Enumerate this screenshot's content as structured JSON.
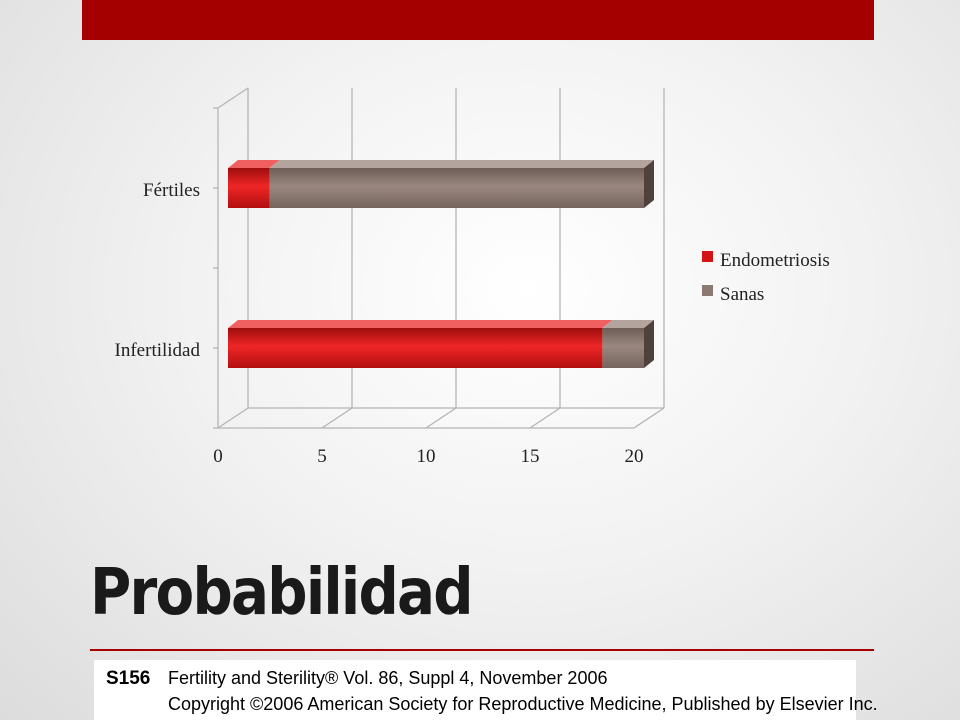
{
  "slide": {
    "title": "Probabilidad"
  },
  "citation": {
    "page": "S156",
    "journal": "Fertility and Sterility® Vol. 86, Suppl 4, November 2006",
    "copyright": "Copyright ©2006 American Society for Reproductive Medicine, Published by Elsevier Inc."
  },
  "colors": {
    "accent": "#a50000",
    "endometriosis": "#d41414",
    "sanas": "#8c7a72"
  },
  "chart_data": {
    "type": "bar",
    "orientation": "horizontal",
    "stacked": true,
    "style": "3d",
    "title": "",
    "xlabel": "",
    "ylabel": "",
    "categories": [
      "Infertilidad",
      "Fértiles"
    ],
    "series": [
      {
        "name": "Endometriosis",
        "values": [
          18,
          2
        ],
        "color": "#d41414"
      },
      {
        "name": "Sanas",
        "values": [
          2,
          18
        ],
        "color": "#8c7a72"
      }
    ],
    "xlim": [
      0,
      20
    ],
    "x_ticks": [
      "0",
      "5",
      "10",
      "15",
      "20"
    ],
    "grid": true,
    "legend": "right"
  }
}
